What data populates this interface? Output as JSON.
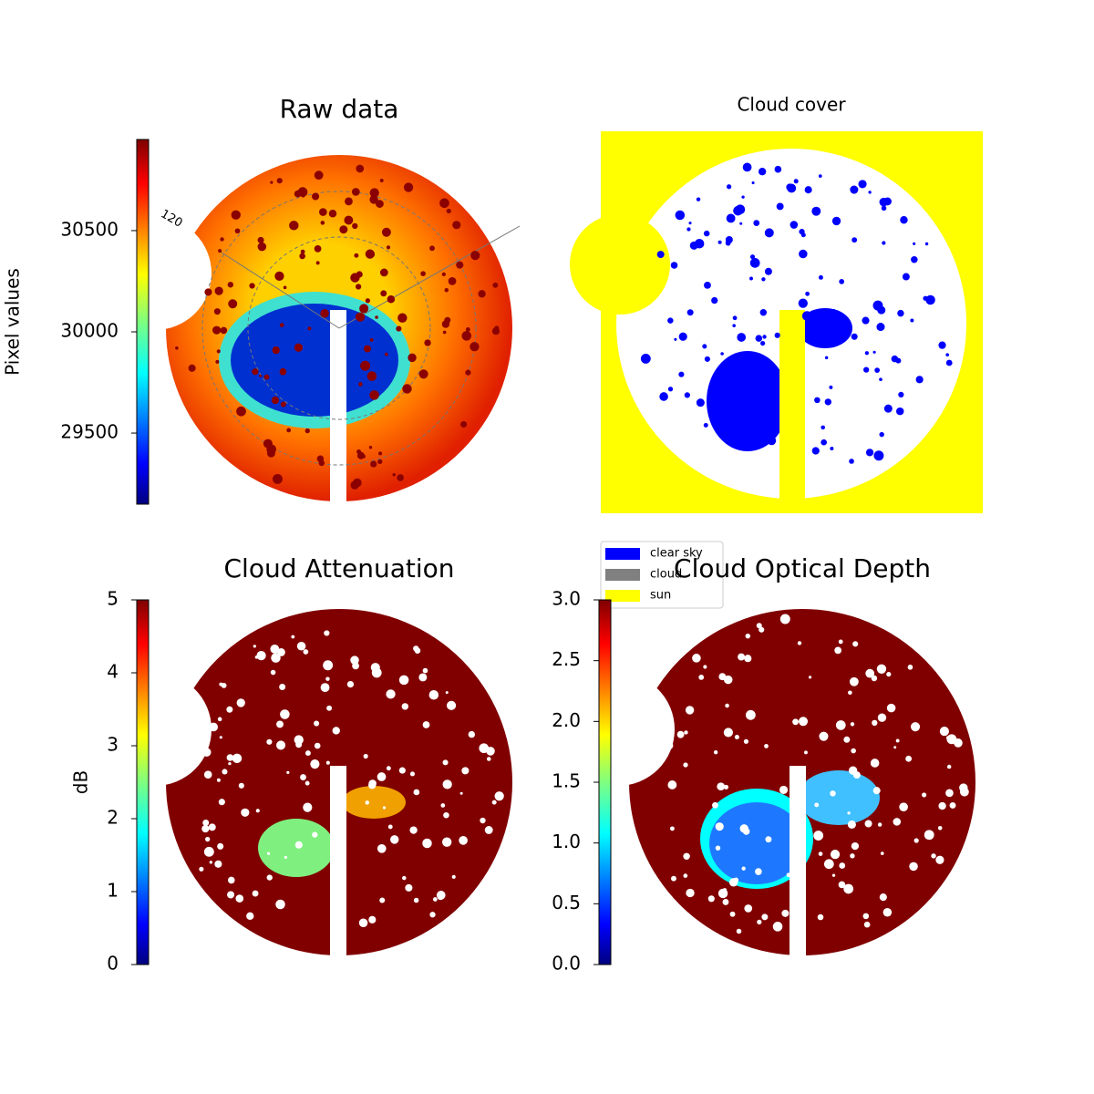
{
  "chart_data": [
    {
      "type": "heatmap",
      "title": "Raw data",
      "annotation": "120",
      "colorbar": {
        "label": "Pixel values",
        "lim": [
          29149,
          30950
        ],
        "ticks": [
          29500,
          30000,
          30500
        ]
      }
    },
    {
      "type": "categorical",
      "title": "Cloud cover",
      "legend": [
        {
          "name": "clear sky",
          "color": "#0000ff"
        },
        {
          "name": "cloud",
          "color": "#808080"
        },
        {
          "name": "sun",
          "color": "#ffff00"
        }
      ]
    },
    {
      "type": "heatmap",
      "title": "Cloud Attenuation",
      "colorbar": {
        "label": "dB",
        "lim": [
          0,
          5
        ],
        "ticks": [
          0,
          1,
          2,
          3,
          4,
          5
        ]
      }
    },
    {
      "type": "heatmap",
      "title": "Cloud Optical Depth",
      "colorbar": {
        "lim": [
          0,
          3
        ],
        "ticks": [
          {
            "value": 0,
            "label": "0.0"
          },
          0.5,
          {
            "value": 1,
            "label": "1.0"
          },
          1.5,
          {
            "value": 2,
            "label": "2.0"
          },
          2.5,
          {
            "value": 3,
            "label": "3.0"
          }
        ]
      }
    }
  ]
}
